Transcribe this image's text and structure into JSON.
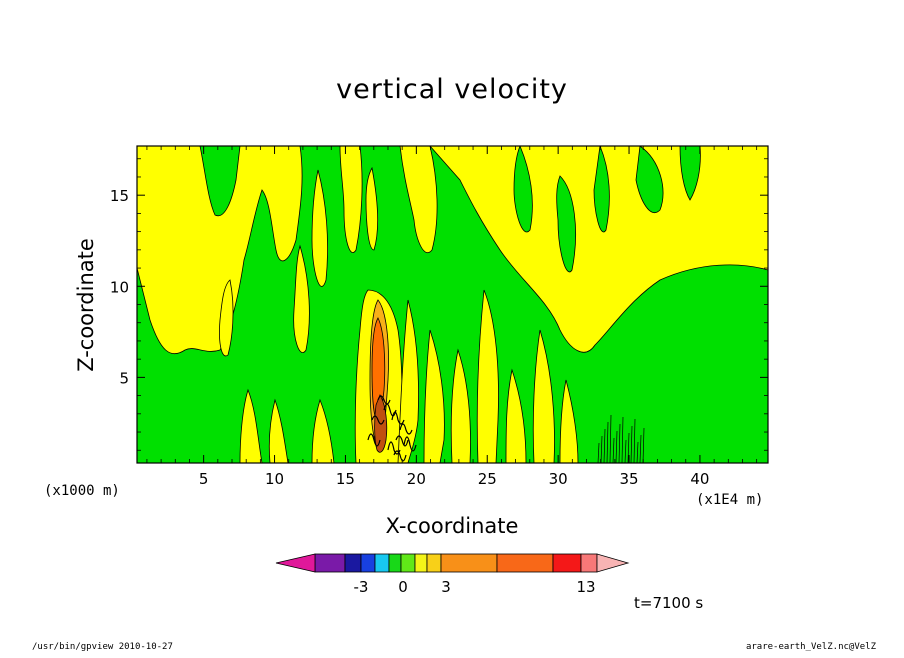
{
  "chart_data": {
    "type": "heatmap",
    "title": "vertical velocity",
    "xlabel": "X-coordinate",
    "ylabel": "Z-coordinate",
    "x_unit_note": "(x1000 m)",
    "x_scale_note": "(x1E4 m)",
    "xlim": [
      0.3,
      44.8
    ],
    "ylim": [
      0.3,
      17.7
    ],
    "x_ticks": [
      5,
      10,
      15,
      20,
      25,
      30,
      35,
      40
    ],
    "y_ticks": [
      5,
      10,
      15
    ],
    "colorbar": {
      "tick_labels": [
        "-3",
        "0",
        "3",
        "13"
      ],
      "colors": [
        "#e0189a",
        "#7a1aa8",
        "#1a18a0",
        "#1840e0",
        "#18c8f0",
        "#18d818",
        "#60e818",
        "#f4f418",
        "#f8d018",
        "#f89018",
        "#f86818",
        "#f41818",
        "#f87878",
        "#f8b4b4"
      ]
    },
    "regions": [
      {
        "level": "positive-weak",
        "color": "#ffff00",
        "description": "upper-right broad region"
      },
      {
        "level": "negative-weak",
        "color": "#00e000",
        "description": "background"
      },
      {
        "level": "strong-updraft",
        "color": "#ff7000",
        "x_range": [
          16.5,
          18.2
        ],
        "z_range": [
          2.5,
          8.5
        ]
      }
    ]
  },
  "annotations": {
    "time": "t=7100 s",
    "footer_left": "/usr/bin/gpview   2010-10-27",
    "footer_right": "arare-earth_VelZ.nc@VelZ"
  }
}
